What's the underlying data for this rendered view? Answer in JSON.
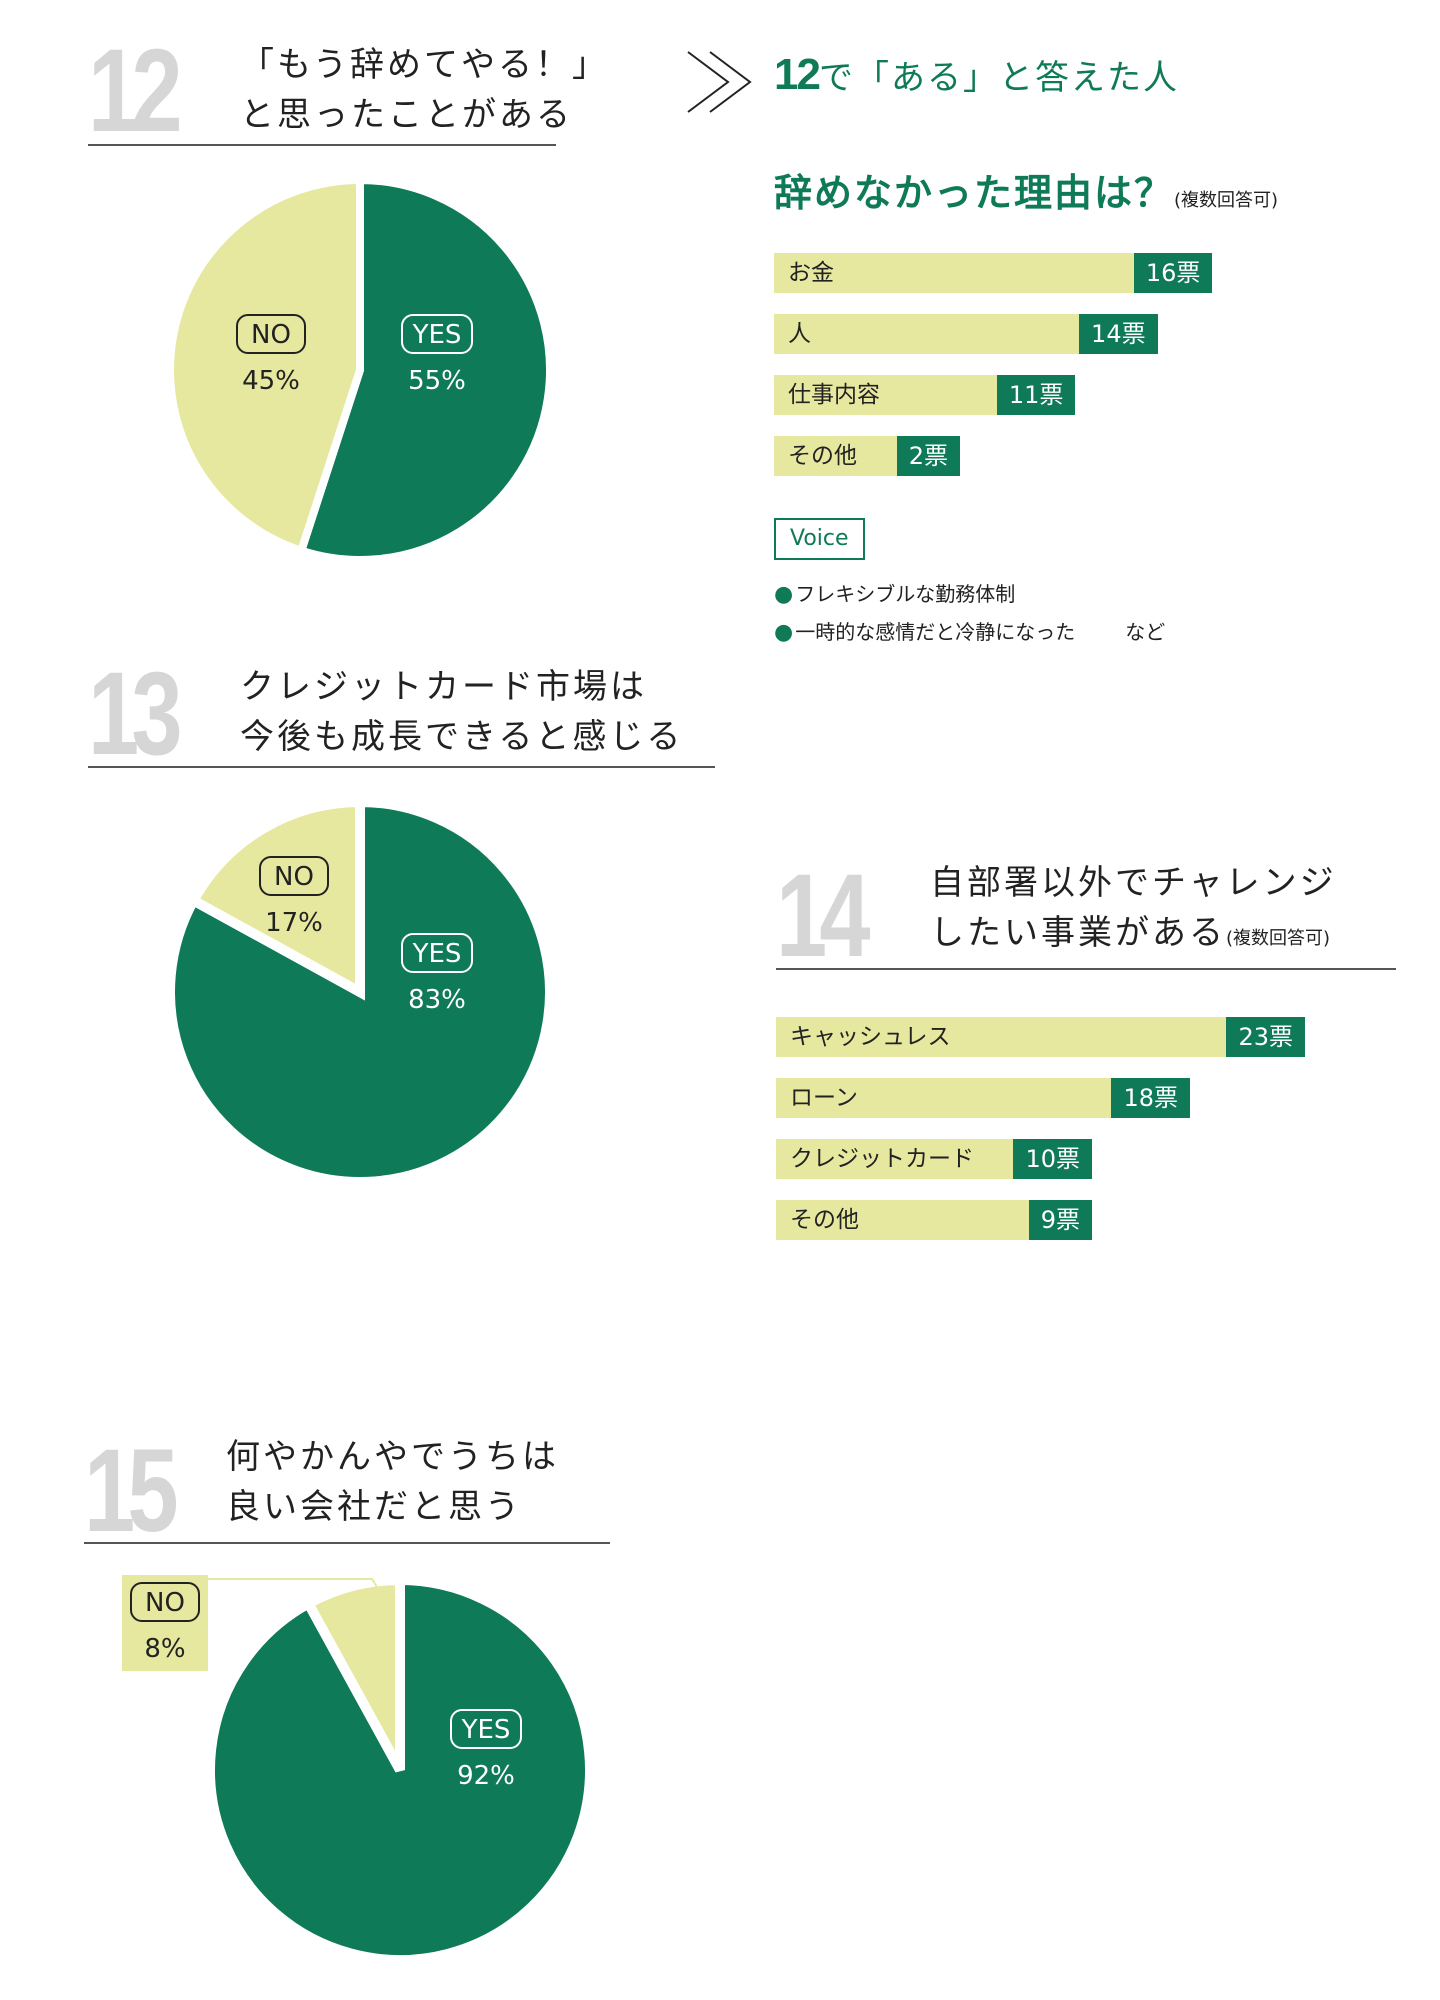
{
  "colors": {
    "yes": "#0f7a57",
    "no": "#e6e89f",
    "grey": "#d6d6d6"
  },
  "q12": {
    "num": "12",
    "title_line1": "「もう辞めてやる！」",
    "title_line2": "と思ったことがある",
    "chart_data": {
      "type": "pie",
      "slices": [
        {
          "name": "YES",
          "value": 55
        },
        {
          "name": "NO",
          "value": 45
        }
      ],
      "value_labels": [
        "55%",
        "45%"
      ]
    }
  },
  "q12_follow": {
    "heading_num": "12",
    "heading_text": "で「ある」と答えた人",
    "question": "辞めなかった理由は？",
    "note": "(複数回答可)",
    "chart_data": {
      "type": "bar",
      "categories": [
        "お金",
        "人",
        "仕事内容",
        "その他"
      ],
      "values": [
        16,
        14,
        11,
        2
      ],
      "value_labels": [
        "16票",
        "14票",
        "11票",
        "2票"
      ]
    },
    "voice_label": "Voice",
    "voices": [
      "フレキシブルな勤務体制",
      "一時的な感情だと冷静になった"
    ],
    "voices_etc": "など"
  },
  "q13": {
    "num": "13",
    "title_line1": "クレジットカード市場は",
    "title_line2": "今後も成長できると感じる",
    "chart_data": {
      "type": "pie",
      "slices": [
        {
          "name": "YES",
          "value": 83
        },
        {
          "name": "NO",
          "value": 17
        }
      ],
      "value_labels": [
        "83%",
        "17%"
      ]
    }
  },
  "q14": {
    "num": "14",
    "title_line1": "自部署以外でチャレンジ",
    "title_line2": "したい事業がある",
    "note": "(複数回答可)",
    "chart_data": {
      "type": "bar",
      "categories": [
        "キャッシュレス",
        "ローン",
        "クレジットカード",
        "その他"
      ],
      "values": [
        23,
        18,
        10,
        9
      ],
      "value_labels": [
        "23票",
        "18票",
        "10票",
        "9票"
      ]
    }
  },
  "q15": {
    "num": "15",
    "title_line1": "何やかんやでうちは",
    "title_line2": "良い会社だと思う",
    "chart_data": {
      "type": "pie",
      "slices": [
        {
          "name": "YES",
          "value": 92
        },
        {
          "name": "NO",
          "value": 8
        }
      ],
      "value_labels": [
        "92%",
        "8%"
      ]
    }
  }
}
